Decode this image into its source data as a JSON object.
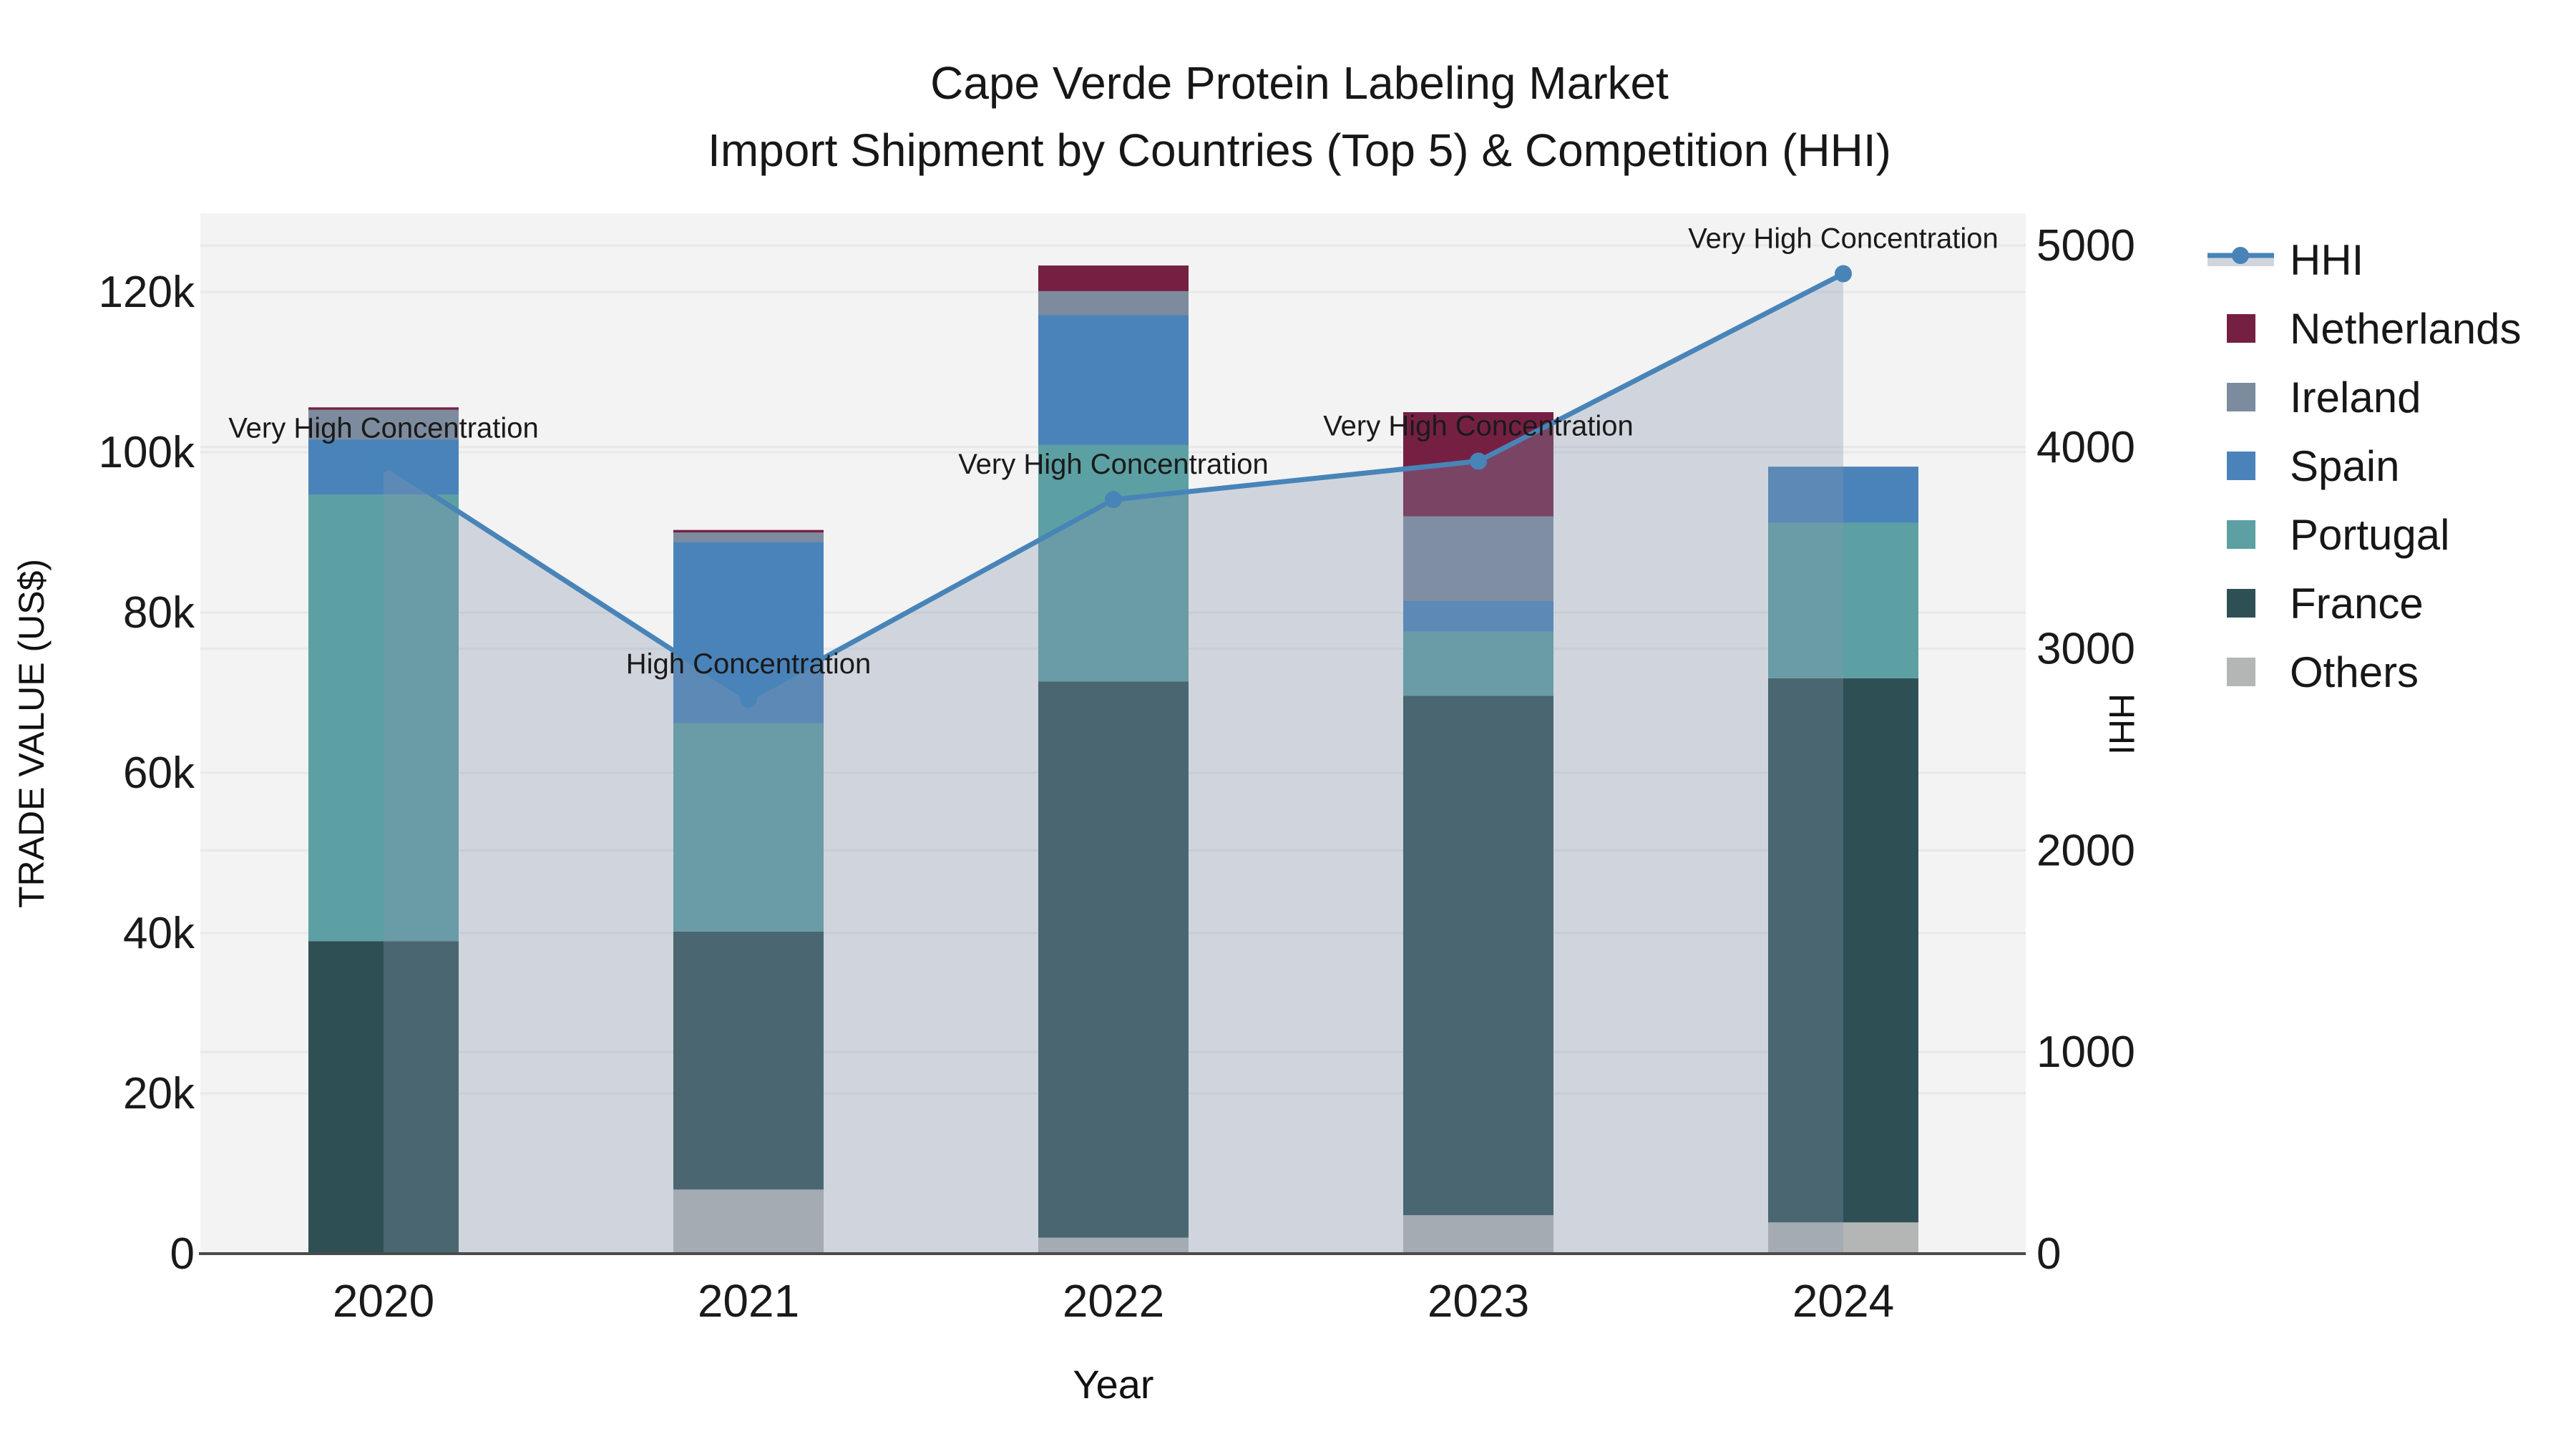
{
  "title": {
    "line1": "Cape Verde Protein Labeling Market",
    "line2": "Import Shipment by Countries (Top 5) & Competition (HHI)"
  },
  "axes": {
    "x_label": "Year",
    "y_left_label": "TRADE VALUE (US$)",
    "y_right_label": "HHI",
    "x_categories": [
      "2020",
      "2021",
      "2022",
      "2023",
      "2024"
    ],
    "y_left_ticks": [
      {
        "value": 0,
        "label": "0"
      },
      {
        "value": 20000,
        "label": "20k"
      },
      {
        "value": 40000,
        "label": "40k"
      },
      {
        "value": 60000,
        "label": "60k"
      },
      {
        "value": 80000,
        "label": "80k"
      },
      {
        "value": 100000,
        "label": "100k"
      },
      {
        "value": 120000,
        "label": "120k"
      }
    ],
    "y_right_ticks": [
      {
        "value": 0,
        "label": "0"
      },
      {
        "value": 1000,
        "label": "1000"
      },
      {
        "value": 2000,
        "label": "2000"
      },
      {
        "value": 3000,
        "label": "3000"
      },
      {
        "value": 4000,
        "label": "4000"
      },
      {
        "value": 5000,
        "label": "5000"
      }
    ]
  },
  "legend": {
    "items": [
      {
        "label": "HHI",
        "type": "line",
        "color": "#4884B8"
      },
      {
        "label": "Netherlands",
        "type": "swatch",
        "color": "#752043"
      },
      {
        "label": "Ireland",
        "type": "swatch",
        "color": "#7C8B9E"
      },
      {
        "label": "Spain",
        "type": "swatch",
        "color": "#4A83BA"
      },
      {
        "label": "Portugal",
        "type": "swatch",
        "color": "#5CA0A3"
      },
      {
        "label": "France",
        "type": "swatch",
        "color": "#2E5054"
      },
      {
        "label": "Others",
        "type": "swatch",
        "color": "#B4B5B5"
      }
    ]
  },
  "chart_data": {
    "type": "combo-stacked-bar-line-area",
    "title": "Cape Verde Protein Labeling Market — Import Shipment by Countries (Top 5) & Competition (HHI)",
    "categories": [
      "2020",
      "2021",
      "2022",
      "2023",
      "2024"
    ],
    "bar_value_unit": "US$",
    "ylim_left": [
      0,
      130000
    ],
    "ylim_right": [
      0,
      5200
    ],
    "grid": true,
    "legend_position": "right",
    "series": [
      {
        "name": "Others",
        "color": "#B4B5B5",
        "values": [
          0,
          8000,
          2000,
          4800,
          3900
        ]
      },
      {
        "name": "France",
        "color": "#2E5054",
        "values": [
          39000,
          32200,
          69400,
          64800,
          67900
        ]
      },
      {
        "name": "Portugal",
        "color": "#5CA0A3",
        "values": [
          55700,
          26000,
          29500,
          8000,
          19400
        ]
      },
      {
        "name": "Spain",
        "color": "#4A83BA",
        "values": [
          6900,
          22600,
          16200,
          3900,
          7000
        ]
      },
      {
        "name": "Ireland",
        "color": "#7C8B9E",
        "values": [
          3700,
          1200,
          3000,
          10500,
          0
        ]
      },
      {
        "name": "Netherlands",
        "color": "#752043",
        "values": [
          300,
          300,
          3200,
          13000,
          0
        ]
      }
    ],
    "bar_totals": [
      105600,
      90300,
      123300,
      105000,
      98200
    ],
    "line": {
      "name": "HHI",
      "color": "#4884B8",
      "area_fill": "rgba(135,150,175,0.32)",
      "values": [
        3920,
        2750,
        3740,
        3930,
        4860
      ]
    },
    "annotations": [
      {
        "category": "2020",
        "text": "Very High Concentration"
      },
      {
        "category": "2021",
        "text": "High Concentration"
      },
      {
        "category": "2022",
        "text": "Very High Concentration"
      },
      {
        "category": "2023",
        "text": "Very High Concentration"
      },
      {
        "category": "2024",
        "text": "Very High Concentration"
      }
    ]
  },
  "style": {
    "plot_bg": "#F3F3F3",
    "grid_color": "#E8E8E8",
    "axis_line_color": "#4A4A4A",
    "annotation_color": "#000000",
    "legend_line_band": "#D0D5DD"
  }
}
